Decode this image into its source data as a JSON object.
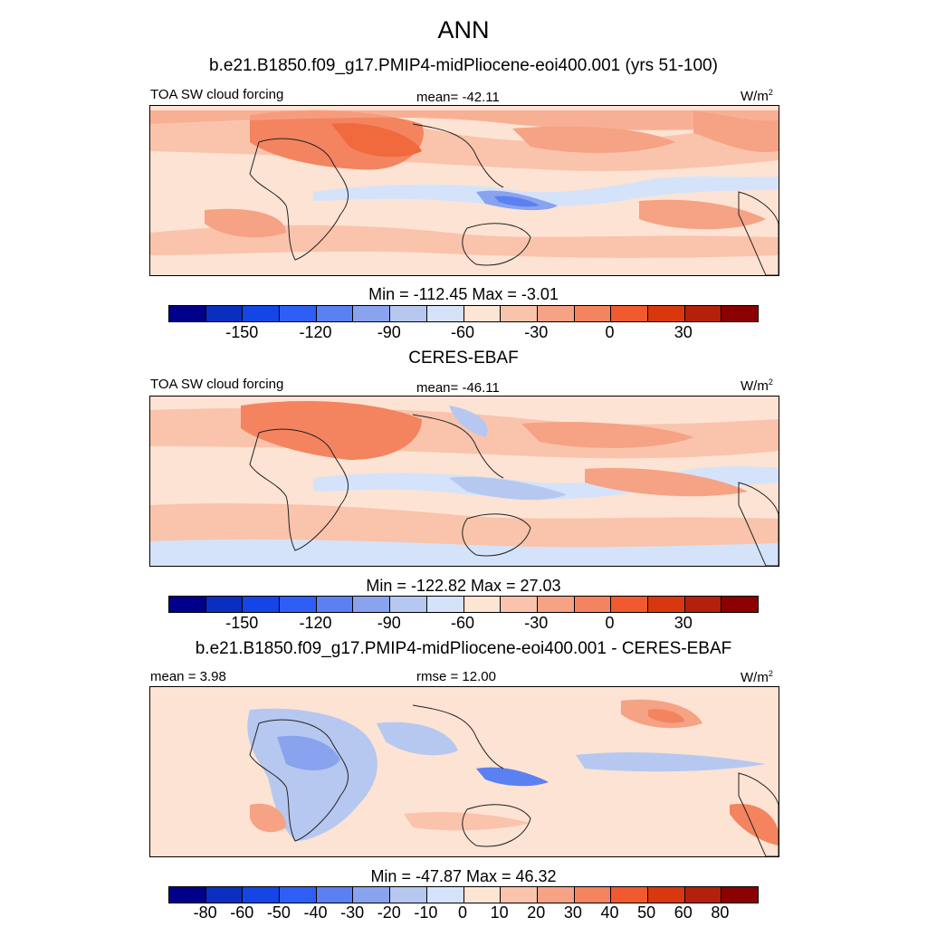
{
  "chart_data": {
    "type": "heatmap",
    "title": "ANN",
    "panels": [
      {
        "id": "model",
        "subtitle": "b.e21.B1850.f09_g17.PMIP4-midPliocene-eoi400.001 (yrs 51-100)",
        "left_label": "TOA SW cloud forcing",
        "center_label": "mean= -42.11",
        "units_base": "W/m",
        "units_exp": "2",
        "min": -112.45,
        "max": -3.01,
        "minmax_text": "Min = -112.45 Max =  -3.01",
        "colorbar_ticks": [
          "-150",
          "-120",
          "-90",
          "-60",
          "-30",
          "0",
          "30"
        ],
        "levels": [
          -165,
          -150,
          -135,
          -120,
          -105,
          -90,
          -75,
          -60,
          -45,
          -30,
          -15,
          0,
          15,
          30,
          45
        ]
      },
      {
        "id": "obs",
        "subtitle": "CERES-EBAF",
        "left_label": "TOA SW cloud forcing",
        "center_label": "mean= -46.11",
        "units_base": "W/m",
        "units_exp": "2",
        "min": -122.82,
        "max": 27.03,
        "minmax_text": "Min = -122.82 Max =  27.03",
        "colorbar_ticks": [
          "-150",
          "-120",
          "-90",
          "-60",
          "-30",
          "0",
          "30"
        ],
        "levels": [
          -165,
          -150,
          -135,
          -120,
          -105,
          -90,
          -75,
          -60,
          -45,
          -30,
          -15,
          0,
          15,
          30,
          45
        ]
      },
      {
        "id": "diff",
        "subtitle": "b.e21.B1850.f09_g17.PMIP4-midPliocene-eoi400.001 - CERES-EBAF",
        "left_label": "mean =   3.98",
        "center_label": "rmse =  12.00",
        "units_base": "W/m",
        "units_exp": "2",
        "min": -47.87,
        "max": 46.32,
        "minmax_text": "Min = -47.87 Max =  46.32",
        "colorbar_ticks": [
          "-80",
          "-60",
          "-50",
          "-40",
          "-30",
          "-20",
          "-10",
          "0",
          "10",
          "20",
          "30",
          "40",
          "50",
          "60",
          "80"
        ],
        "levels": [
          -80,
          -60,
          -50,
          -40,
          -30,
          -20,
          -10,
          0,
          10,
          20,
          30,
          40,
          50,
          60,
          80
        ]
      }
    ],
    "colormap": [
      "#00008b",
      "#0a2fc0",
      "#1445e6",
      "#2e5ef5",
      "#5a80f2",
      "#8aa3ee",
      "#b6c8f0",
      "#d4e3fa",
      "#fde5d4",
      "#f9c4ab",
      "#f6a284",
      "#f3845f",
      "#f05a2e",
      "#d9380f",
      "#b3200c",
      "#8b0000"
    ]
  }
}
